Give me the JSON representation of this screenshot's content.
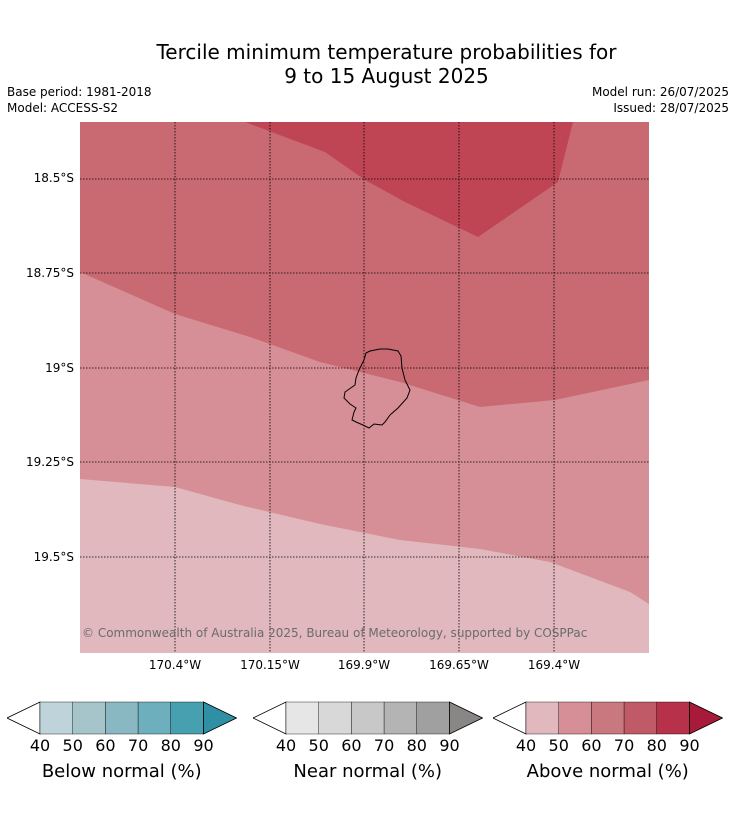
{
  "title": {
    "line1": "Tercile minimum temperature probabilities for",
    "line2": "9 to 15 August 2025"
  },
  "meta": {
    "base_period": "Base period: 1981-2018",
    "model": "Model: ACCESS-S2",
    "model_run": "Model run: 26/07/2025",
    "issued": "Issued: 28/07/2025"
  },
  "map": {
    "lat_labels": [
      "18.5°S",
      "18.75°S",
      "19°S",
      "19.25°S",
      "19.5°S"
    ],
    "lon_labels": [
      "170.4°W",
      "170.15°W",
      "169.9°W",
      "169.65°W",
      "169.4°W"
    ],
    "copyright": "© Commonwealth of Australia 2025, Bureau of Meteorology, supported by COSPPac",
    "colors": {
      "above_40_50": "#e0b8bd",
      "above_50_60": "#d68f97",
      "above_60_70": "#c96a73",
      "above_70_80": "#bf4554",
      "island_outline": "#000000"
    }
  },
  "colorbars": [
    {
      "name": "below",
      "title": "Below normal (%)",
      "ticks": [
        "40",
        "50",
        "60",
        "70",
        "80",
        "90"
      ],
      "colors": [
        "#ffffff",
        "#bed3da",
        "#a6c5cb",
        "#89b7c2",
        "#6dafbc",
        "#47a0b0",
        "#2f8fa5"
      ]
    },
    {
      "name": "near",
      "title": "Near normal (%)",
      "ticks": [
        "40",
        "50",
        "60",
        "70",
        "80",
        "90"
      ],
      "colors": [
        "#ffffff",
        "#e6e6e6",
        "#d8d8d8",
        "#c8c8c8",
        "#b4b4b4",
        "#a0a0a0",
        "#898686"
      ]
    },
    {
      "name": "above",
      "title": "Above normal (%)",
      "ticks": [
        "40",
        "50",
        "60",
        "70",
        "80",
        "90"
      ],
      "colors": [
        "#ffffff",
        "#e0b8bd",
        "#d68f97",
        "#c97880",
        "#c05a67",
        "#b8314b",
        "#a81a3a"
      ]
    }
  ]
}
